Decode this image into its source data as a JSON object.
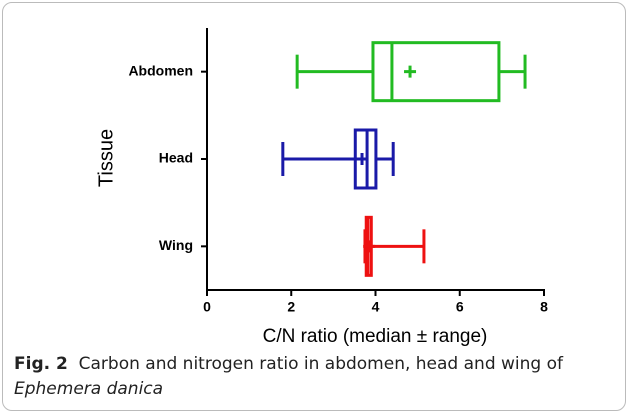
{
  "chart_data": {
    "type": "box",
    "orientation": "horizontal",
    "x_label": "C/N ratio (median ± range)",
    "y_label": "Tissue",
    "xlim": [
      0,
      8
    ],
    "xticks": [
      0,
      2,
      4,
      6,
      8
    ],
    "categories": [
      "Abdomen",
      "Head",
      "Wing"
    ],
    "series": [
      {
        "name": "Abdomen",
        "color": "#22bb22",
        "min": 2.14,
        "q1": 3.94,
        "median": 4.39,
        "q3": 6.93,
        "max": 7.55,
        "mean": 4.82
      },
      {
        "name": "Head",
        "color": "#1a1aa8",
        "min": 1.8,
        "q1": 3.52,
        "median": 3.8,
        "q3": 4.01,
        "max": 4.42,
        "mean": 3.68
      },
      {
        "name": "Wing",
        "color": "#ee1111",
        "min": 3.75,
        "q1": 3.78,
        "median": 3.82,
        "q3": 3.9,
        "max": 5.15,
        "mean": 3.85
      }
    ]
  },
  "caption": {
    "label": "Fig. 2",
    "text": "Carbon and nitrogen ratio in abdomen, head and wing of",
    "species": "Ephemera danica"
  }
}
